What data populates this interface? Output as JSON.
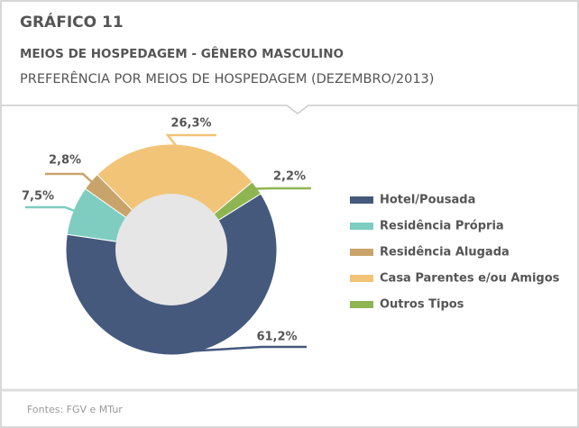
{
  "chart_data": {
    "type": "donut",
    "chart_number": "GRÁFICO 11",
    "title": "MEIOS DE HOSPEDAGEM - GÊNERO MASCULINO",
    "subtitle": "PREFERÊNCIA POR MEIOS DE HOSPEDAGEM (DEZEMBRO/2013)",
    "categories": [
      "Hotel/Pousada",
      "Residência Própria",
      "Residência Alugada",
      "Casa Parentes e/ou Amigos",
      "Outros Tipos"
    ],
    "values": [
      61.2,
      7.5,
      2.8,
      26.3,
      2.2
    ],
    "value_labels": [
      "61,2%",
      "7,5%",
      "2,8%",
      "26,3%",
      "2,2%"
    ],
    "colors": [
      "#44597c",
      "#7ecdc0",
      "#c9a46a",
      "#f1c477",
      "#8fb552"
    ],
    "legend": "right",
    "source": "Fontes: FGV e MTur"
  }
}
